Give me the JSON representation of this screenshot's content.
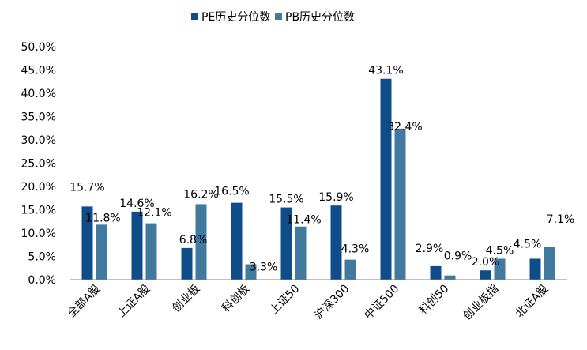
{
  "chart_data": {
    "type": "bar",
    "categories": [
      "全部A股",
      "上证A股",
      "创业板",
      "科创板",
      "上证50",
      "沪深300",
      "中证500",
      "科创50",
      "创业板指",
      "北证A股"
    ],
    "series": [
      {
        "name": "PE历史分位数",
        "color": "#0E4C8A",
        "values": [
          15.7,
          14.6,
          6.8,
          16.5,
          15.5,
          15.9,
          43.1,
          2.9,
          2.0,
          4.5
        ],
        "labels": [
          "15.7%",
          "14.6%",
          "6.8%",
          "16.5%",
          "15.5%",
          "15.9%",
          "43.1%",
          "2.9%",
          "2.0%",
          "4.5%"
        ]
      },
      {
        "name": "PB历史分位数",
        "color": "#41799F",
        "values": [
          11.8,
          12.1,
          16.2,
          3.3,
          11.4,
          4.3,
          32.4,
          0.9,
          4.5,
          7.1
        ],
        "labels": [
          "11.8%",
          "12.1%",
          "16.2%",
          "3.3%",
          "11.4%",
          "4.3%",
          "32.4%",
          "0.9%",
          "4.5%",
          "7.1%"
        ]
      }
    ],
    "ylim": [
      0,
      50
    ],
    "yticks": [
      "0.0%",
      "5.0%",
      "10.0%",
      "15.0%",
      "20.0%",
      "25.0%",
      "30.0%",
      "35.0%",
      "40.0%",
      "45.0%",
      "50.0%"
    ],
    "grid": false,
    "legend_position": "top-center"
  }
}
